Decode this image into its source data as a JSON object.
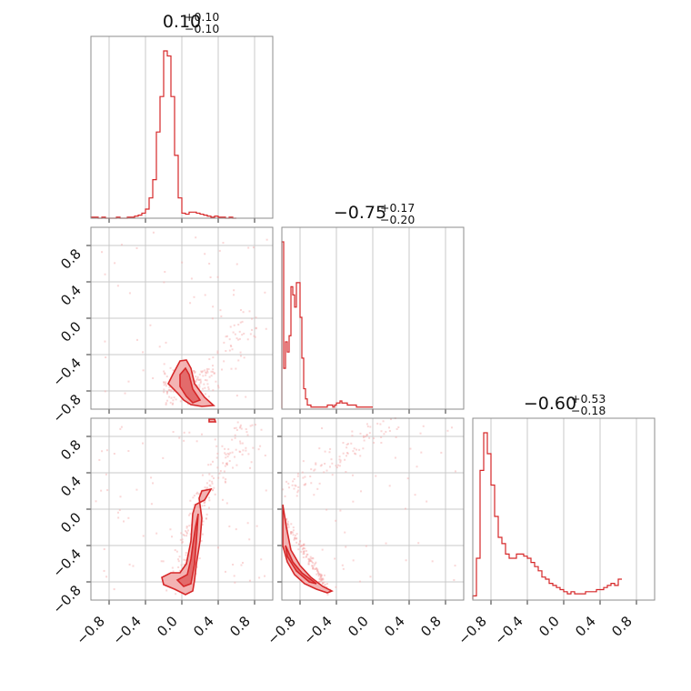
{
  "chart_data": {
    "type": "corner",
    "colors": {
      "line": "#d62728",
      "fill_light": "#f3b3b3",
      "fill_dark": "#e36b6b",
      "scatter": "#f4a6a6",
      "grid": "#c9c9c9"
    },
    "ticks": {
      "x": [
        -0.8,
        -0.4,
        0.0,
        0.4,
        0.8
      ],
      "x_labels": [
        "−0.8",
        "−0.4",
        "0.0",
        "0.4",
        "0.8"
      ],
      "y": [
        -0.8,
        -0.4,
        0.0,
        0.4,
        0.8
      ],
      "y_labels": [
        "−0.8",
        "−0.4",
        "0.0",
        "0.4",
        "0.8"
      ]
    },
    "params": [
      {
        "title_value": "0.10",
        "title_plus": "+0.10",
        "title_minus": "−0.10",
        "median": 0.1,
        "err_plus": 0.1,
        "err_minus": 0.1
      },
      {
        "title_value": "−0.75",
        "title_plus": "+0.17",
        "title_minus": "−0.20",
        "median": -0.75,
        "err_plus": 0.17,
        "err_minus": 0.2
      },
      {
        "title_value": "−0.60",
        "title_plus": "+0.53",
        "title_minus": "−0.18",
        "median": -0.6,
        "err_plus": 0.53,
        "err_minus": 0.18
      }
    ],
    "range": [
      -1.0,
      1.0
    ],
    "grid": true,
    "hist1": {
      "edges_start": -1.0,
      "bin_width": 0.04,
      "counts": [
        1,
        1,
        0,
        1,
        0,
        0,
        0,
        1,
        0,
        0,
        1,
        1,
        2,
        3,
        5,
        9,
        20,
        38,
        85,
        120,
        165,
        160,
        120,
        62,
        20,
        5,
        4,
        6,
        6,
        5,
        4,
        3,
        2,
        1,
        2,
        1,
        1,
        0,
        1,
        0
      ]
    },
    "hist2": {
      "edges_start": -1.0,
      "bin_width": 0.02,
      "counts": [
        0.82,
        0.2,
        0.33,
        0.28,
        0.36,
        0.6,
        0.56,
        0.5,
        0.62,
        0.62,
        0.45,
        0.25,
        0.1,
        0.05,
        0.02,
        0.02,
        0.01,
        0.01,
        0.01,
        0.01,
        0.01,
        0.01,
        0.01,
        0.01,
        0.01,
        0.02,
        0.02,
        0.02,
        0.01,
        0.02,
        0.03,
        0.03,
        0.04,
        0.03,
        0.03,
        0.03,
        0.02,
        0.02,
        0.02,
        0.02,
        0.02,
        0.01,
        0.01,
        0.01,
        0.01,
        0.01,
        0.01,
        0.01,
        0.01,
        0.01
      ]
    },
    "hist3": {
      "edges_start": -1.0,
      "bin_width": 0.04,
      "counts": [
        0.02,
        0.2,
        0.62,
        0.8,
        0.7,
        0.55,
        0.4,
        0.3,
        0.27,
        0.22,
        0.2,
        0.2,
        0.22,
        0.22,
        0.21,
        0.2,
        0.18,
        0.16,
        0.14,
        0.11,
        0.1,
        0.08,
        0.07,
        0.06,
        0.05,
        0.04,
        0.03,
        0.04,
        0.03,
        0.03,
        0.03,
        0.04,
        0.04,
        0.04,
        0.05,
        0.05,
        0.06,
        0.07,
        0.08,
        0.07
      ]
    },
    "hist3_extra_last": 0.1,
    "contours": {
      "p21": [
        {
          "outer": [
            [
              -0.1,
              -0.62
            ],
            [
              -0.02,
              -0.47
            ],
            [
              0.05,
              -0.46
            ],
            [
              0.1,
              -0.55
            ],
            [
              0.14,
              -0.72
            ],
            [
              0.25,
              -0.87
            ],
            [
              0.35,
              -0.96
            ],
            [
              0.22,
              -0.97
            ],
            [
              0.1,
              -0.95
            ],
            [
              0.02,
              -0.9
            ],
            [
              -0.05,
              -0.82
            ],
            [
              -0.15,
              -0.72
            ]
          ],
          "core": [
            [
              -0.02,
              -0.62
            ],
            [
              0.04,
              -0.55
            ],
            [
              0.08,
              -0.62
            ],
            [
              0.12,
              -0.78
            ],
            [
              0.2,
              -0.9
            ],
            [
              0.12,
              -0.93
            ],
            [
              0.05,
              -0.86
            ],
            [
              -0.02,
              -0.75
            ]
          ]
        }
      ],
      "p31": [
        {
          "outer": [
            [
              0.05,
              -0.6
            ],
            [
              0.1,
              -0.35
            ],
            [
              0.12,
              -0.05
            ],
            [
              0.15,
              0.05
            ],
            [
              0.25,
              0.1
            ],
            [
              0.32,
              0.22
            ],
            [
              0.22,
              0.2
            ],
            [
              0.19,
              0.12
            ],
            [
              0.22,
              -0.1
            ],
            [
              0.2,
              -0.35
            ],
            [
              0.16,
              -0.6
            ],
            [
              0.14,
              -0.78
            ],
            [
              0.12,
              -0.9
            ],
            [
              0.04,
              -0.94
            ],
            [
              -0.08,
              -0.88
            ],
            [
              -0.2,
              -0.83
            ],
            [
              -0.22,
              -0.75
            ],
            [
              -0.12,
              -0.7
            ],
            [
              -0.02,
              -0.7
            ]
          ],
          "core": [
            [
              0.06,
              -0.72
            ],
            [
              0.1,
              -0.55
            ],
            [
              0.12,
              -0.4
            ],
            [
              0.15,
              -0.2
            ],
            [
              0.18,
              -0.05
            ],
            [
              0.16,
              -0.35
            ],
            [
              0.14,
              -0.6
            ],
            [
              0.1,
              -0.82
            ],
            [
              0.02,
              -0.85
            ],
            [
              -0.05,
              -0.78
            ]
          ]
        },
        {
          "outer": [
            [
              0.3,
              0.99
            ],
            [
              0.36,
              0.99
            ],
            [
              0.37,
              0.96
            ],
            [
              0.3,
              0.96
            ]
          ],
          "core": []
        }
      ],
      "p32": [
        {
          "outer": [
            [
              -0.99,
              0.05
            ],
            [
              -0.95,
              -0.2
            ],
            [
              -0.9,
              -0.45
            ],
            [
              -0.8,
              -0.62
            ],
            [
              -0.68,
              -0.75
            ],
            [
              -0.55,
              -0.85
            ],
            [
              -0.45,
              -0.9
            ],
            [
              -0.5,
              -0.92
            ],
            [
              -0.62,
              -0.88
            ],
            [
              -0.75,
              -0.82
            ],
            [
              -0.86,
              -0.72
            ],
            [
              -0.94,
              -0.58
            ],
            [
              -0.99,
              -0.4
            ]
          ],
          "core": [
            [
              -0.96,
              -0.4
            ],
            [
              -0.88,
              -0.58
            ],
            [
              -0.78,
              -0.7
            ],
            [
              -0.62,
              -0.82
            ],
            [
              -0.7,
              -0.8
            ],
            [
              -0.84,
              -0.68
            ],
            [
              -0.94,
              -0.52
            ]
          ]
        }
      ]
    }
  }
}
